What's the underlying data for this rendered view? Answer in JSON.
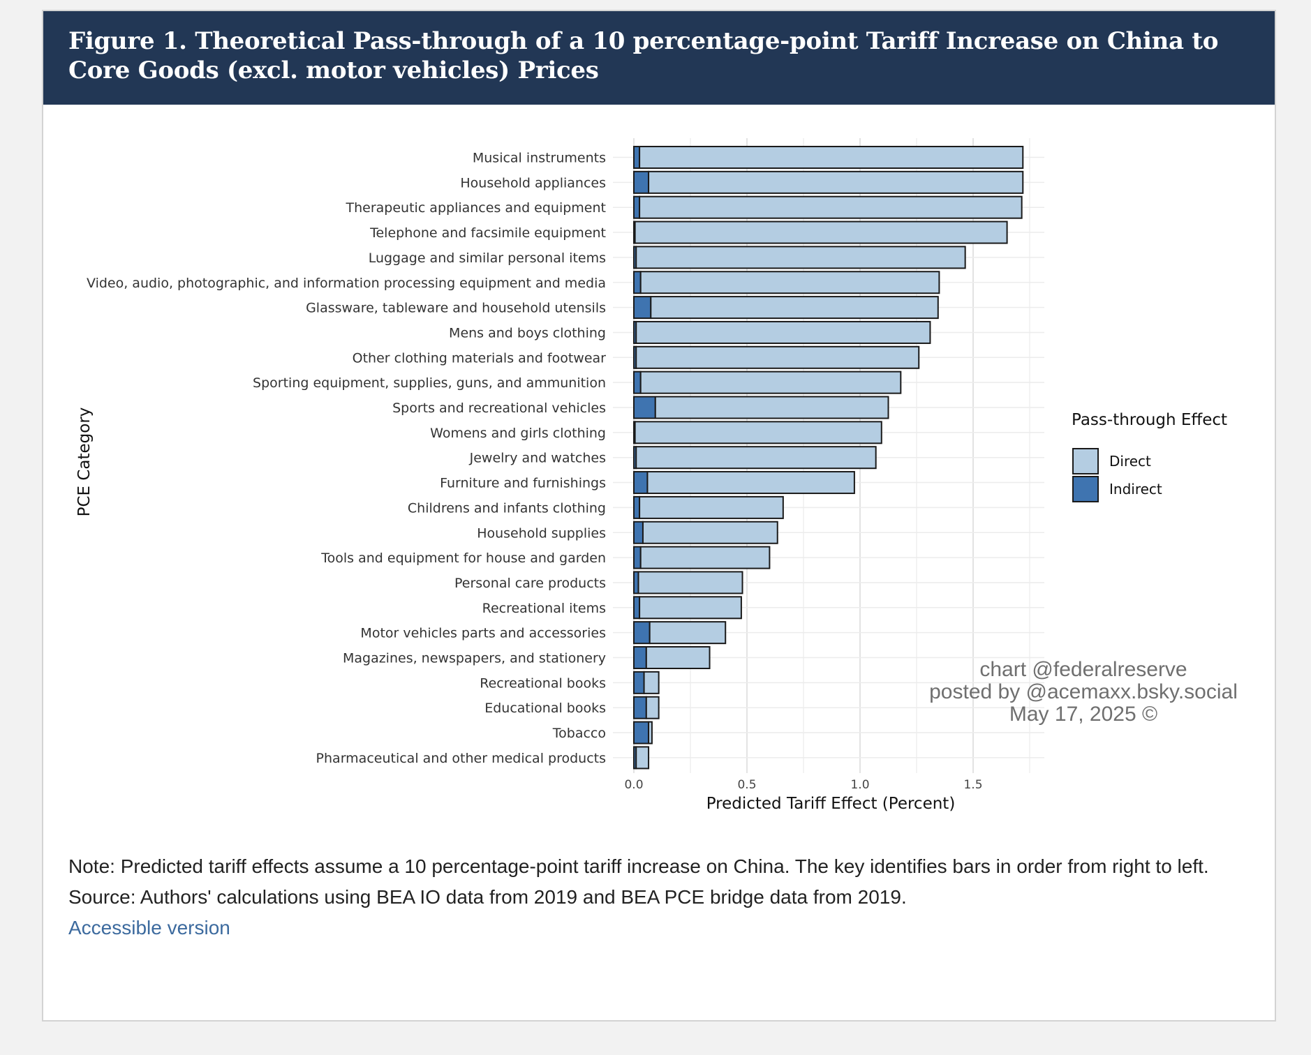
{
  "figure": {
    "title": "Figure 1. Theoretical Pass-through of a 10 percentage-point Tariff Increase on China to Core Goods (excl. motor vehicles) Prices"
  },
  "chart_data": {
    "type": "bar",
    "orientation": "horizontal",
    "stacked": true,
    "categories": [
      "Musical instruments",
      "Household appliances",
      "Therapeutic appliances and equipment",
      "Telephone and facsimile equipment",
      "Luggage and similar personal items",
      "Video, audio, photographic, and information processing equipment and media",
      "Glassware, tableware and household utensils",
      "Mens and boys clothing",
      "Other clothing materials and footwear",
      "Sporting equipment, supplies, guns, and ammunition",
      "Sports and recreational vehicles",
      "Womens and girls clothing",
      "Jewelry and watches",
      "Furniture and furnishings",
      "Childrens and infants clothing",
      "Household supplies",
      "Tools and equipment for house and garden",
      "Personal care products",
      "Recreational items",
      "Motor vehicles parts and accessories",
      "Magazines, newspapers, and stationery",
      "Recreational books",
      "Educational books",
      "Tobacco",
      "Pharmaceutical and other medical products"
    ],
    "series": [
      {
        "name": "Indirect",
        "color": "#3f74b0",
        "values": [
          0.025,
          0.065,
          0.025,
          0.005,
          0.01,
          0.03,
          0.075,
          0.01,
          0.01,
          0.03,
          0.095,
          0.005,
          0.01,
          0.06,
          0.025,
          0.04,
          0.03,
          0.02,
          0.025,
          0.07,
          0.055,
          0.045,
          0.055,
          0.065,
          0.01
        ]
      },
      {
        "name": "Direct",
        "color": "#b4cde2",
        "values": [
          1.695,
          1.655,
          1.69,
          1.645,
          1.455,
          1.32,
          1.27,
          1.3,
          1.25,
          1.15,
          1.03,
          1.09,
          1.06,
          0.915,
          0.635,
          0.595,
          0.57,
          0.46,
          0.45,
          0.335,
          0.28,
          0.065,
          0.055,
          0.015,
          0.055
        ]
      }
    ],
    "xlabel": "Predicted Tariff Effect (Percent)",
    "ylabel": "PCE Category",
    "xlim": [
      0,
      1.8
    ],
    "xticks": [
      "0.0",
      "0.5",
      "1.0",
      "1.5"
    ],
    "grid": true,
    "legend": {
      "title": "Pass-through Effect",
      "position": "right",
      "entries": [
        {
          "label": "Direct",
          "color": "#b4cde2"
        },
        {
          "label": "Indirect",
          "color": "#3f74b0"
        }
      ]
    }
  },
  "watermark": {
    "line1": "chart @federalreserve",
    "line2": "posted by @acemaxx.bsky.social",
    "line3": "May 17, 2025 ©"
  },
  "notes": {
    "note": "Note: Predicted tariff effects assume a 10 percentage-point tariff increase on China. The key identifies bars in order from right to left.",
    "source": "Source: Authors' calculations using BEA IO data from 2019 and BEA PCE bridge data from 2019.",
    "accessible_link": "Accessible version"
  }
}
